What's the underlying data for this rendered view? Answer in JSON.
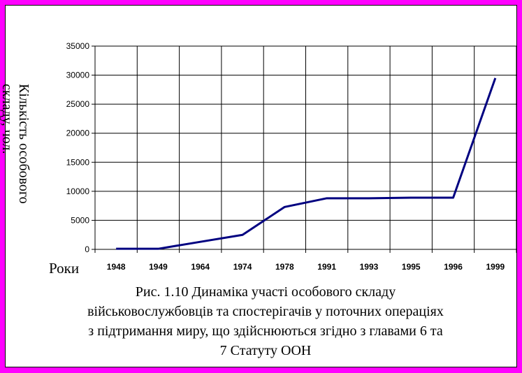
{
  "chart_data": {
    "type": "line",
    "categories": [
      "1948",
      "1949",
      "1964",
      "1974",
      "1978",
      "1991",
      "1993",
      "1995",
      "1996",
      "1999"
    ],
    "series": [
      {
        "values": [
          100,
          100,
          1300,
          2500,
          7300,
          8800,
          8800,
          8900,
          8900,
          29500
        ]
      }
    ],
    "ylim": [
      0,
      35000
    ],
    "yticks": [
      0,
      5000,
      10000,
      15000,
      20000,
      25000,
      30000,
      35000
    ],
    "ylabel_lines": [
      "Кількість особового",
      "складу, чол."
    ],
    "xlabel": "Роки",
    "grid": true,
    "line_color": "#000080"
  },
  "caption_lines": [
    "Рис. 1.10 Динаміка участі особового складу",
    "військовослужбовців та спостерігачів у поточних операціях",
    "з підтримання миру, що здійснюються згідно з главами 6 та",
    "7 Статуту ООН"
  ]
}
